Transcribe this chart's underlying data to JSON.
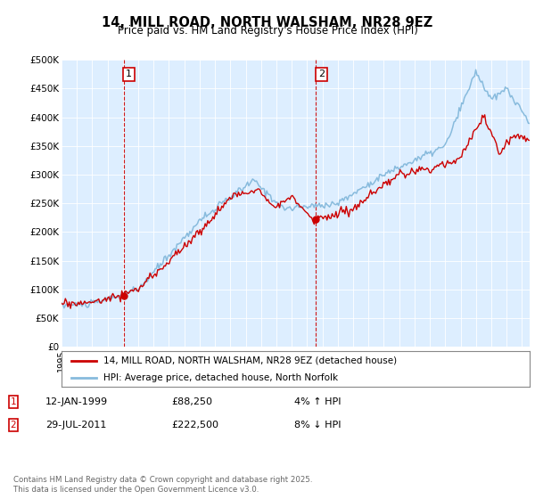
{
  "title": "14, MILL ROAD, NORTH WALSHAM, NR28 9EZ",
  "subtitle": "Price paid vs. HM Land Registry's House Price Index (HPI)",
  "ylabel_ticks": [
    "£0",
    "£50K",
    "£100K",
    "£150K",
    "£200K",
    "£250K",
    "£300K",
    "£350K",
    "£400K",
    "£450K",
    "£500K"
  ],
  "ylim": [
    0,
    500000
  ],
  "legend_line1": "14, MILL ROAD, NORTH WALSHAM, NR28 9EZ (detached house)",
  "legend_line2": "HPI: Average price, detached house, North Norfolk",
  "annotation1_label": "1",
  "annotation1_date": "12-JAN-1999",
  "annotation1_price": "£88,250",
  "annotation1_hpi": "4% ↑ HPI",
  "annotation2_label": "2",
  "annotation2_date": "29-JUL-2011",
  "annotation2_price": "£222,500",
  "annotation2_hpi": "8% ↓ HPI",
  "footnote": "Contains HM Land Registry data © Crown copyright and database right 2025.\nThis data is licensed under the Open Government Licence v3.0.",
  "line_color_red": "#cc0000",
  "line_color_blue": "#88bbdd",
  "bg_color": "#ddeeff",
  "purchase1_x": 1999.04,
  "purchase1_y": 88250,
  "purchase2_x": 2011.57,
  "purchase2_y": 222500,
  "xmin": 1995.0,
  "xmax": 2025.5
}
